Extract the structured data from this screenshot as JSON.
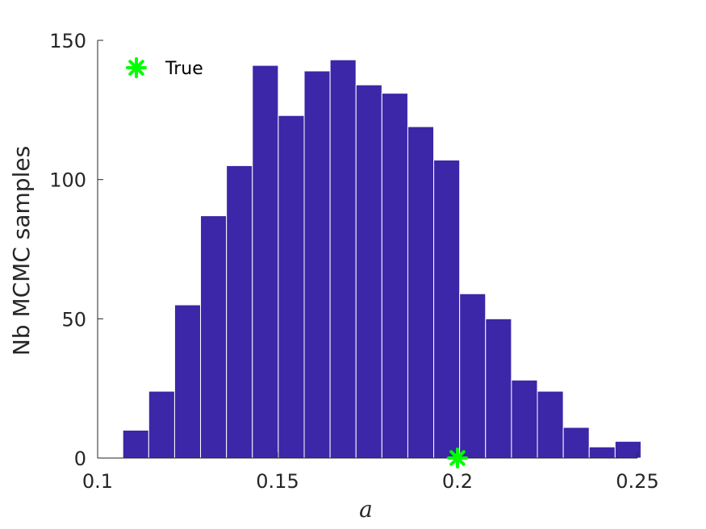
{
  "chart_data": {
    "type": "bar",
    "subtype": "histogram",
    "bin_edges": [
      0.107,
      0.1142,
      0.1214,
      0.1286,
      0.1358,
      0.143,
      0.1502,
      0.1574,
      0.1646,
      0.1718,
      0.179,
      0.1862,
      0.1934,
      0.2006,
      0.2078,
      0.215,
      0.2222,
      0.2294,
      0.2366,
      0.2438,
      0.251
    ],
    "values": [
      10,
      24,
      55,
      87,
      105,
      141,
      123,
      139,
      143,
      134,
      131,
      119,
      107,
      59,
      50,
      28,
      24,
      11,
      4,
      6
    ],
    "xlabel": "a",
    "ylabel": "Nb MCMC samples",
    "xlim": [
      0.1,
      0.25
    ],
    "ylim": [
      0,
      150
    ],
    "x_ticks": [
      0.1,
      0.15,
      0.2,
      0.25
    ],
    "x_tick_labels": [
      "0.1",
      "0.15",
      "0.2",
      "0.25"
    ],
    "y_ticks": [
      0,
      50,
      100,
      150
    ],
    "y_tick_labels": [
      "0",
      "50",
      "100",
      "150"
    ],
    "bar_color": "#3b27a8",
    "bar_edge_color": "#ffffff",
    "grid": false,
    "markers": [
      {
        "name": "True",
        "x": 0.2,
        "y": 0,
        "marker": "asterisk",
        "color": "#00ff00"
      }
    ],
    "legend": {
      "position": "top-left",
      "entries": [
        {
          "label": "True",
          "marker": "asterisk",
          "color": "#00ff00"
        }
      ]
    }
  }
}
